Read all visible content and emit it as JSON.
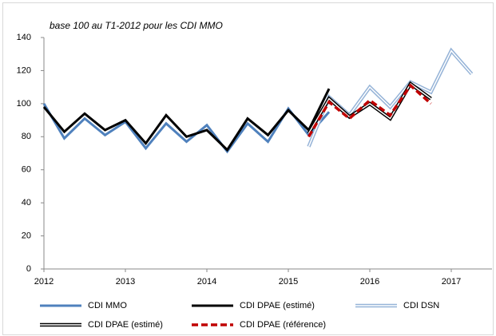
{
  "chart_data": {
    "type": "line",
    "annotation": "base 100 au T1-2012 pour les CDI MMO",
    "xlim": [
      2012,
      2017.5
    ],
    "xticks": [
      2012,
      2013,
      2014,
      2015,
      2016,
      2017
    ],
    "ylim": [
      0,
      140
    ],
    "yticks": [
      0,
      20,
      40,
      60,
      80,
      100,
      120,
      140
    ],
    "grid": false,
    "series": [
      {
        "name": "CDI MMO",
        "color": "#4f81bd",
        "style": "solid",
        "x": [
          2012,
          2012.25,
          2012.5,
          2012.75,
          2013,
          2013.25,
          2013.5,
          2013.75,
          2014,
          2014.25,
          2014.5,
          2014.75,
          2015,
          2015.25,
          2015.5
        ],
        "values": [
          100,
          79,
          91,
          81,
          89,
          73,
          88,
          77,
          87,
          71,
          88,
          77,
          97,
          81,
          95
        ]
      },
      {
        "name": "CDI DPAE (estimé)",
        "color": "#000000",
        "style": "solid",
        "x": [
          2012,
          2012.25,
          2012.5,
          2012.75,
          2013,
          2013.25,
          2013.5,
          2013.75,
          2014,
          2014.25,
          2014.5,
          2014.75,
          2015,
          2015.25,
          2015.5
        ],
        "values": [
          98,
          83,
          94,
          84,
          90,
          76,
          93,
          80,
          84,
          72,
          91,
          81,
          96,
          84,
          109
        ]
      },
      {
        "name": "CDI DSN",
        "color": "#95b3d7",
        "style": "double",
        "x": [
          2015.25,
          2015.5,
          2015.75,
          2016,
          2016.25,
          2016.5,
          2016.75,
          2017,
          2017.25
        ],
        "values": [
          74,
          104,
          93,
          110,
          98,
          113,
          107,
          132,
          118
        ]
      },
      {
        "name": "CDI DPAE (estimé)",
        "color": "#000000",
        "style": "double",
        "x": [
          2015.25,
          2015.5,
          2015.75,
          2016,
          2016.25,
          2016.5,
          2016.75
        ],
        "values": [
          82,
          103,
          92,
          100,
          91,
          112,
          103
        ]
      },
      {
        "name": "CDI DPAE (référence)",
        "color": "#c00000",
        "style": "dashed",
        "x": [
          2015.25,
          2015.5,
          2015.75,
          2016,
          2016.25,
          2016.5,
          2016.75
        ],
        "values": [
          80,
          101,
          91,
          102,
          93,
          111,
          100
        ]
      }
    ]
  }
}
